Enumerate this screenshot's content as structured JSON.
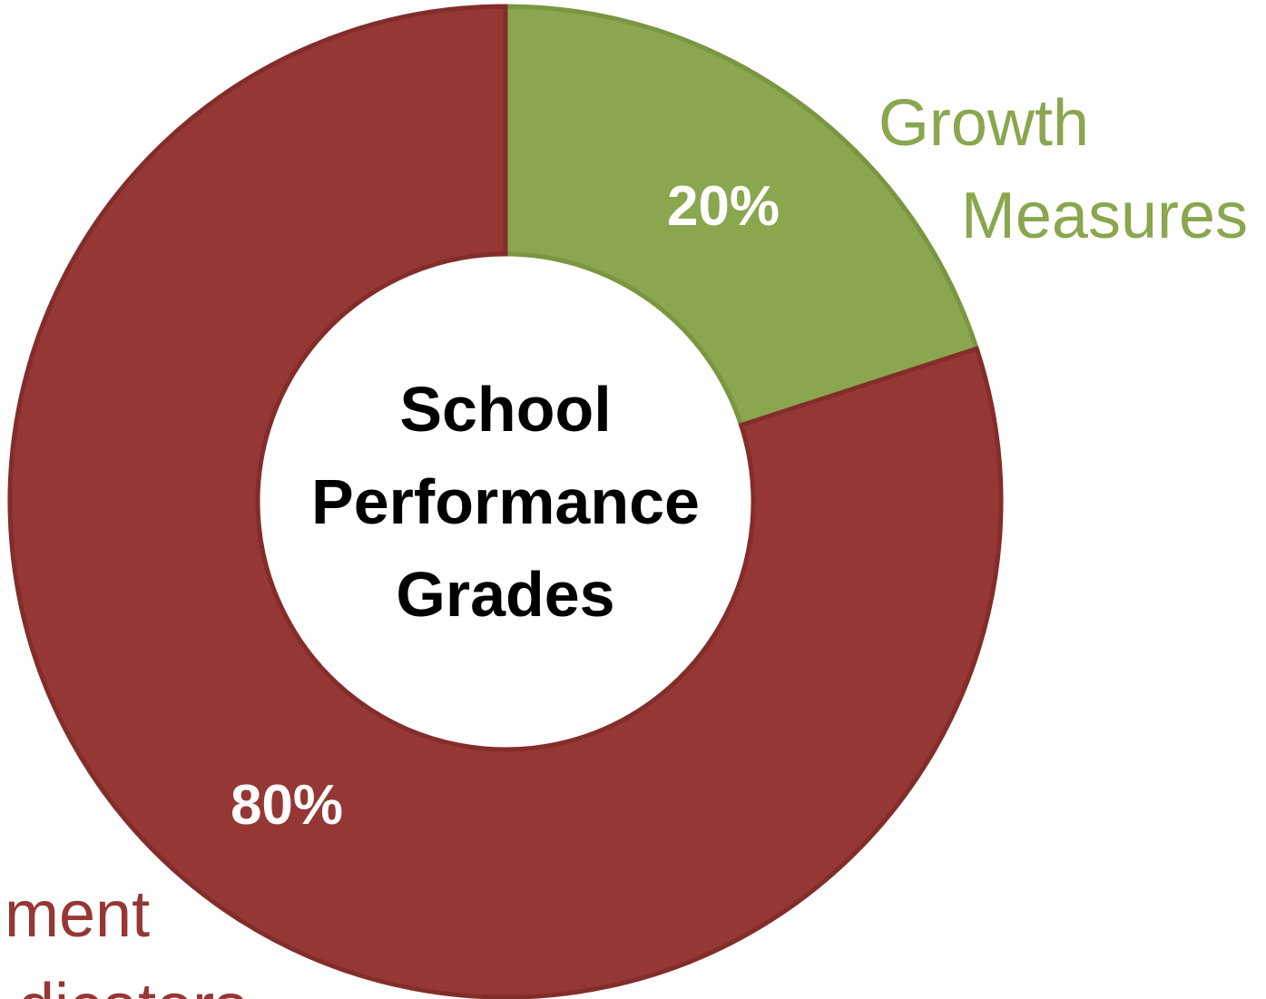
{
  "chart_data": {
    "type": "donut",
    "title": "School Performance Grades",
    "categories": [
      "Growth Measures",
      "ment dicators"
    ],
    "values": [
      20,
      80
    ],
    "value_labels": [
      "20%",
      "80%"
    ],
    "colors": [
      "#8aa64f",
      "#953735"
    ]
  }
}
